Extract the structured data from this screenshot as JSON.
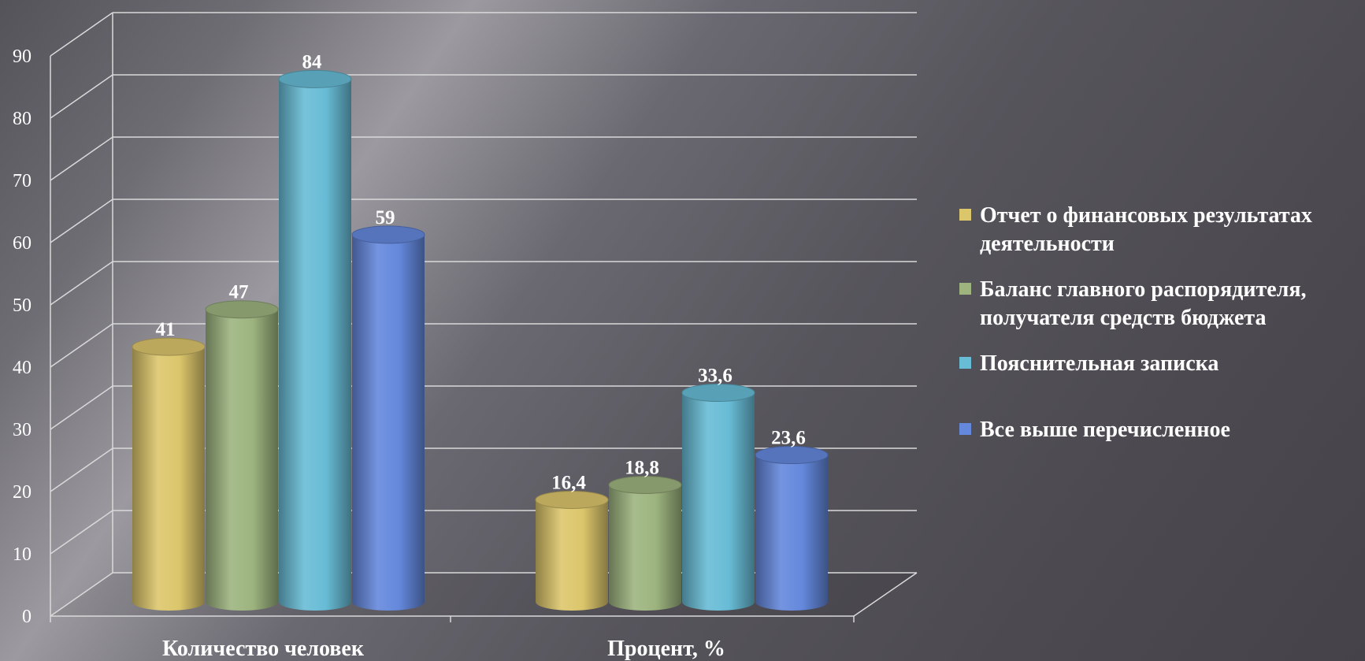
{
  "chart_data": {
    "type": "bar",
    "style": "3d-cylinder",
    "categories": [
      "Количество человек",
      "Процент, %"
    ],
    "series": [
      {
        "name": "Отчет о финансовых результатах деятельности",
        "values": [
          41,
          16.4
        ],
        "labels": [
          "41",
          "16,4"
        ],
        "color": "#dcc66c"
      },
      {
        "name": "Баланс главного распорядителя, получателя средств бюджета",
        "values": [
          47,
          18.8
        ],
        "labels": [
          "47",
          "18,8"
        ],
        "color": "#9db47f"
      },
      {
        "name": "Пояснительная записка",
        "values": [
          84,
          33.6
        ],
        "labels": [
          "84",
          "33,6"
        ],
        "color": "#68bcd6"
      },
      {
        "name": "Все выше перечисленное",
        "values": [
          59,
          23.6
        ],
        "labels": [
          "59",
          "23,6"
        ],
        "color": "#6488dc"
      }
    ],
    "ylim": [
      0,
      90
    ],
    "yticks": [
      0,
      10,
      20,
      30,
      40,
      50,
      60,
      70,
      80,
      90
    ],
    "grid": true,
    "legend": "right"
  }
}
